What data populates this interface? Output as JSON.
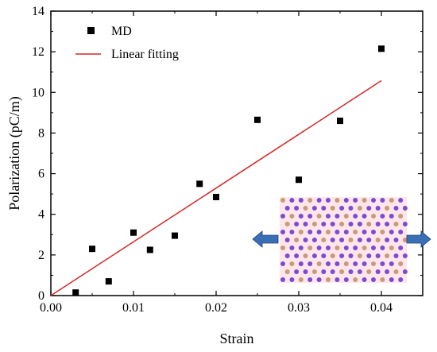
{
  "chart_data": {
    "type": "scatter",
    "xlabel": "Strain",
    "ylabel": "Polarization (pC/m)",
    "xlim": [
      0,
      0.045
    ],
    "ylim": [
      0,
      14
    ],
    "xticks": [
      "0.00",
      "0.01",
      "0.02",
      "0.03",
      "0.04"
    ],
    "xtick_values": [
      0,
      0.01,
      0.02,
      0.03,
      0.04
    ],
    "yticks": [
      "0",
      "2",
      "4",
      "6",
      "8",
      "10",
      "12",
      "14"
    ],
    "ytick_values": [
      0,
      2,
      4,
      6,
      8,
      10,
      12,
      14
    ],
    "grid": false,
    "legend_position": "top-left",
    "series": [
      {
        "name": "MD",
        "kind": "scatter",
        "marker": "square",
        "color": "#000000",
        "x": [
          0.003,
          0.005,
          0.007,
          0.01,
          0.012,
          0.015,
          0.018,
          0.02,
          0.025,
          0.03,
          0.035,
          0.04
        ],
        "y": [
          0.15,
          2.3,
          0.7,
          3.1,
          2.25,
          2.95,
          5.5,
          4.85,
          8.65,
          5.7,
          8.6,
          12.15
        ]
      },
      {
        "name": "Linear fitting",
        "kind": "line",
        "color": "#d62728",
        "x": [
          0.0,
          0.04
        ],
        "y": [
          0.0,
          10.58
        ]
      }
    ],
    "inset": {
      "description_icon": "crystal-lattice-icon",
      "arrow_color": "#3a6fb5"
    }
  }
}
